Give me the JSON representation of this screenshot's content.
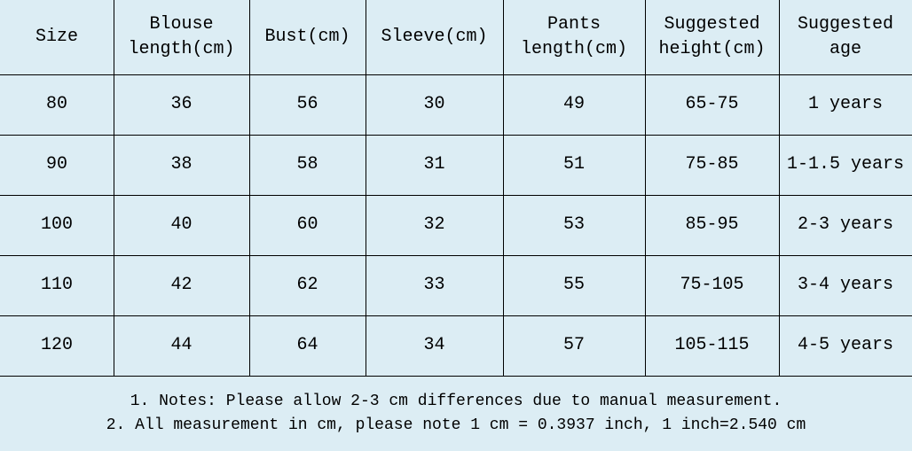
{
  "table": {
    "header": [
      "Size",
      "Blouse\nlength(cm)",
      "Bust(cm)",
      "Sleeve(cm)",
      "Pants\nlength(cm)",
      "Suggested\nheight(cm)",
      "Suggested\nage"
    ],
    "rows": [
      [
        "80",
        "36",
        "56",
        "30",
        "49",
        "65-75",
        "1 years"
      ],
      [
        "90",
        "38",
        "58",
        "31",
        "51",
        "75-85",
        "1-1.5 years"
      ],
      [
        "100",
        "40",
        "60",
        "32",
        "53",
        "85-95",
        "2-3 years"
      ],
      [
        "110",
        "42",
        "62",
        "33",
        "55",
        "75-105",
        "3-4 years"
      ],
      [
        "120",
        "44",
        "64",
        "34",
        "57",
        "105-115",
        "4-5 years"
      ]
    ]
  },
  "notes": [
    "1. Notes: Please allow 2-3 cm differences due to manual measurement.",
    "2. All measurement in cm, please note 1 cm = 0.3937 inch, 1 inch=2.540 cm"
  ]
}
